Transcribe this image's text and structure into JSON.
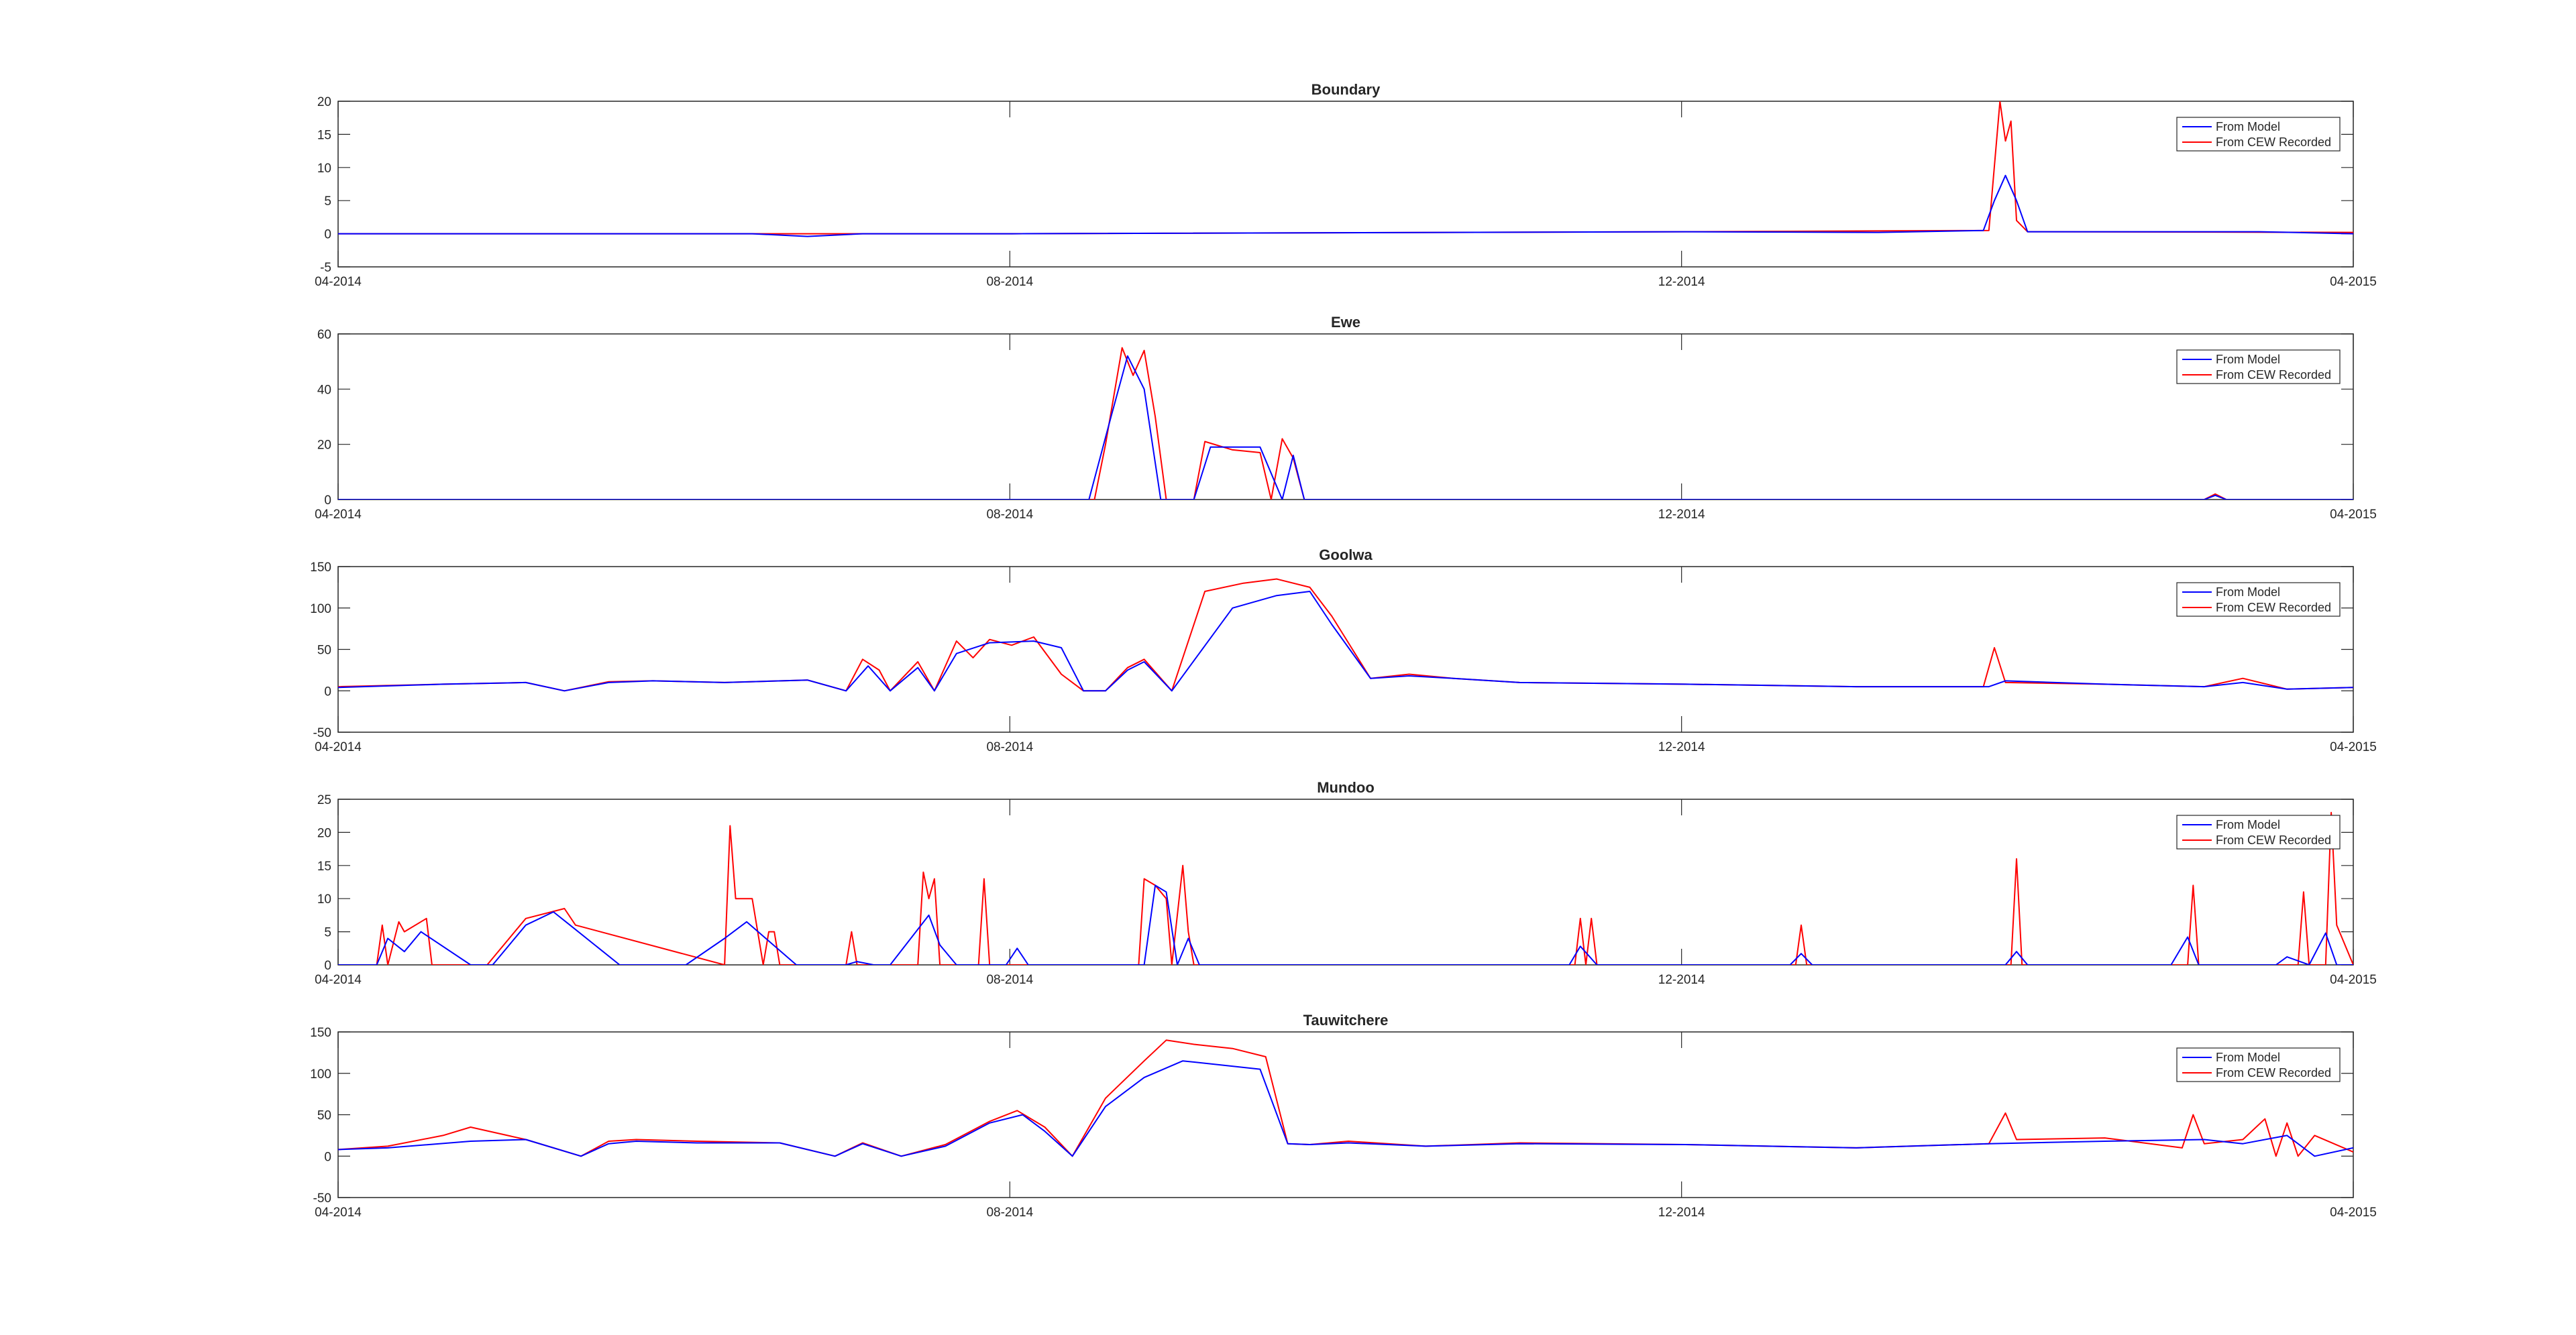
{
  "legend": {
    "model_label": "From Model",
    "recorded_label": "From CEW Recorded"
  },
  "colors": {
    "model": "#0000ff",
    "recorded": "#ff0000",
    "axis": "#262626",
    "grid": "#262626"
  },
  "chart_data": [
    {
      "type": "line",
      "title": "Boundary",
      "xlabel": "",
      "ylabel": "",
      "x_ticks": [
        "04-2014",
        "08-2014",
        "12-2014",
        "04-2015"
      ],
      "x_range": [
        "2014-04-01",
        "2015-04-01"
      ],
      "ylim": [
        -5,
        20
      ],
      "y_ticks": [
        -5,
        0,
        5,
        10,
        15,
        20
      ],
      "legend_position": "top-right",
      "series": [
        {
          "name": "From Model",
          "x": [
            "2014-04-01",
            "2014-06-15",
            "2014-06-25",
            "2014-07-05",
            "2014-08-01",
            "2014-12-01",
            "2015-01-05",
            "2015-01-24",
            "2015-01-26",
            "2015-01-28",
            "2015-01-30",
            "2015-02-01",
            "2015-03-15",
            "2015-04-01"
          ],
          "values": [
            0,
            0,
            -0.4,
            0,
            0,
            0.3,
            0.2,
            0.5,
            5,
            8.8,
            5,
            0.3,
            0.3,
            0
          ]
        },
        {
          "name": "From CEW Recorded",
          "x": [
            "2014-04-01",
            "2014-08-01",
            "2014-12-01",
            "2015-01-25",
            "2015-01-27",
            "2015-01-28",
            "2015-01-29",
            "2015-01-30",
            "2015-02-01",
            "2015-04-01"
          ],
          "values": [
            0,
            0,
            0.3,
            0.5,
            20,
            14,
            17,
            2,
            0.3,
            0.2
          ]
        }
      ]
    },
    {
      "type": "line",
      "title": "Ewe",
      "xlabel": "",
      "ylabel": "",
      "x_ticks": [
        "04-2014",
        "08-2014",
        "12-2014",
        "04-2015"
      ],
      "x_range": [
        "2014-04-01",
        "2015-04-01"
      ],
      "ylim": [
        0,
        60
      ],
      "y_ticks": [
        0,
        20,
        40,
        60
      ],
      "legend_position": "top-right",
      "series": [
        {
          "name": "From Model",
          "x": [
            "2014-04-01",
            "2014-08-15",
            "2014-08-19",
            "2014-08-22",
            "2014-08-25",
            "2014-08-28",
            "2014-09-03",
            "2014-09-06",
            "2014-09-15",
            "2014-09-19",
            "2014-09-21",
            "2014-09-23",
            "2015-03-05",
            "2015-03-07",
            "2015-03-09",
            "2015-04-01"
          ],
          "values": [
            0,
            0,
            30,
            52,
            40,
            0,
            0,
            19,
            19,
            0,
            16,
            0,
            0,
            1.5,
            0,
            0
          ]
        },
        {
          "name": "From CEW Recorded",
          "x": [
            "2014-04-01",
            "2014-08-16",
            "2014-08-18",
            "2014-08-21",
            "2014-08-23",
            "2014-08-25",
            "2014-08-27",
            "2014-08-29",
            "2014-09-03",
            "2014-09-05",
            "2014-09-10",
            "2014-09-15",
            "2014-09-17",
            "2014-09-19",
            "2014-09-21",
            "2014-09-23",
            "2015-03-05",
            "2015-03-07",
            "2015-03-09",
            "2015-04-01"
          ],
          "values": [
            0,
            0,
            20,
            55,
            45,
            54,
            30,
            0,
            0,
            21,
            18,
            17,
            0,
            22,
            15,
            0,
            0,
            2,
            0,
            0
          ]
        }
      ]
    },
    {
      "type": "line",
      "title": "Goolwa",
      "xlabel": "",
      "ylabel": "",
      "x_ticks": [
        "04-2014",
        "08-2014",
        "12-2014",
        "04-2015"
      ],
      "x_range": [
        "2014-04-01",
        "2015-04-01"
      ],
      "ylim": [
        -50,
        150
      ],
      "y_ticks": [
        -50,
        0,
        50,
        100,
        150
      ],
      "legend_position": "top-right",
      "series": [
        {
          "name": "From Model",
          "x": [
            "2014-04-01",
            "2014-04-20",
            "2014-05-05",
            "2014-05-12",
            "2014-05-20",
            "2014-05-28",
            "2014-06-10",
            "2014-06-25",
            "2014-07-02",
            "2014-07-06",
            "2014-07-10",
            "2014-07-15",
            "2014-07-18",
            "2014-07-22",
            "2014-07-28",
            "2014-08-05",
            "2014-08-10",
            "2014-08-14",
            "2014-08-18",
            "2014-08-22",
            "2014-08-25",
            "2014-08-30",
            "2014-09-10",
            "2014-09-18",
            "2014-09-24",
            "2014-09-28",
            "2014-10-05",
            "2014-10-12",
            "2014-10-20",
            "2014-11-01",
            "2014-12-01",
            "2015-01-01",
            "2015-01-25",
            "2015-01-28",
            "2015-02-15",
            "2015-03-05",
            "2015-03-12",
            "2015-03-20",
            "2015-04-01"
          ],
          "values": [
            4,
            8,
            10,
            0,
            10,
            12,
            10,
            13,
            0,
            30,
            0,
            28,
            0,
            45,
            58,
            60,
            52,
            0,
            0,
            25,
            35,
            0,
            100,
            115,
            120,
            80,
            15,
            18,
            15,
            10,
            8,
            5,
            5,
            12,
            8,
            5,
            10,
            2,
            4
          ]
        },
        {
          "name": "From CEW Recorded",
          "x": [
            "2014-04-01",
            "2014-04-20",
            "2014-05-05",
            "2014-05-12",
            "2014-05-20",
            "2014-05-28",
            "2014-06-10",
            "2014-06-25",
            "2014-07-02",
            "2014-07-05",
            "2014-07-08",
            "2014-07-10",
            "2014-07-15",
            "2014-07-18",
            "2014-07-22",
            "2014-07-25",
            "2014-07-28",
            "2014-08-01",
            "2014-08-05",
            "2014-08-10",
            "2014-08-14",
            "2014-08-18",
            "2014-08-22",
            "2014-08-25",
            "2014-08-30",
            "2014-09-05",
            "2014-09-12",
            "2014-09-18",
            "2014-09-24",
            "2014-09-28",
            "2014-10-05",
            "2014-10-12",
            "2014-10-20",
            "2014-11-01",
            "2014-12-01",
            "2015-01-01",
            "2015-01-24",
            "2015-01-26",
            "2015-01-28",
            "2015-02-15",
            "2015-03-05",
            "2015-03-12",
            "2015-03-20",
            "2015-04-01"
          ],
          "values": [
            5,
            8,
            10,
            0,
            11,
            12,
            10,
            13,
            0,
            38,
            25,
            0,
            35,
            0,
            60,
            40,
            62,
            55,
            65,
            20,
            0,
            0,
            28,
            38,
            0,
            120,
            130,
            135,
            125,
            90,
            15,
            20,
            15,
            10,
            8,
            5,
            5,
            52,
            10,
            8,
            5,
            15,
            2,
            4
          ]
        }
      ]
    },
    {
      "type": "line",
      "title": "Mundoo",
      "xlabel": "",
      "ylabel": "",
      "x_ticks": [
        "04-2014",
        "08-2014",
        "12-2014",
        "04-2015"
      ],
      "x_range": [
        "2014-04-01",
        "2015-04-01"
      ],
      "ylim": [
        0,
        25
      ],
      "y_ticks": [
        0,
        5,
        10,
        15,
        20,
        25
      ],
      "legend_position": "top-right",
      "series": [
        {
          "name": "From Model",
          "x": [
            "2014-04-01",
            "2014-04-08",
            "2014-04-10",
            "2014-04-13",
            "2014-04-16",
            "2014-04-25",
            "2014-04-29",
            "2014-05-05",
            "2014-05-10",
            "2014-05-13",
            "2014-05-22",
            "2014-06-03",
            "2014-06-10",
            "2014-06-14",
            "2014-06-23",
            "2014-07-02",
            "2014-07-04",
            "2014-07-07",
            "2014-07-10",
            "2014-07-17",
            "2014-07-19",
            "2014-07-22",
            "2014-07-31",
            "2014-08-02",
            "2014-08-04",
            "2014-08-25",
            "2014-08-27",
            "2014-08-29",
            "2014-08-31",
            "2014-09-02",
            "2014-09-04",
            "2014-11-10",
            "2014-11-12",
            "2014-11-15",
            "2014-12-20",
            "2014-12-22",
            "2014-12-24",
            "2015-01-28",
            "2015-01-30",
            "2015-02-01",
            "2015-02-27",
            "2015-03-02",
            "2015-03-04",
            "2015-03-18",
            "2015-03-20",
            "2015-03-24",
            "2015-03-27",
            "2015-03-29",
            "2015-04-01"
          ],
          "values": [
            0,
            0,
            4,
            2,
            5,
            0,
            0,
            6,
            8,
            6,
            0,
            0,
            4,
            6.5,
            0,
            0,
            0.5,
            0,
            0,
            7.5,
            3,
            0,
            0,
            2.5,
            0,
            0,
            12,
            11,
            0,
            4,
            0,
            0,
            2.8,
            0,
            0,
            1.7,
            0,
            0,
            2,
            0,
            0,
            4.2,
            0,
            0,
            1.2,
            0,
            4.8,
            0,
            0
          ]
        },
        {
          "name": "From CEW Recorded",
          "x": [
            "2014-04-01",
            "2014-04-08",
            "2014-04-09",
            "2014-04-10",
            "2014-04-12",
            "2014-04-13",
            "2014-04-17",
            "2014-04-18",
            "2014-04-25",
            "2014-04-28",
            "2014-05-05",
            "2014-05-12",
            "2014-05-14",
            "2014-06-10",
            "2014-06-11",
            "2014-06-12",
            "2014-06-15",
            "2014-06-17",
            "2014-06-18",
            "2014-06-19",
            "2014-06-20",
            "2014-07-02",
            "2014-07-03",
            "2014-07-04",
            "2014-07-15",
            "2014-07-16",
            "2014-07-17",
            "2014-07-18",
            "2014-07-19",
            "2014-07-22",
            "2014-07-26",
            "2014-07-27",
            "2014-07-28",
            "2014-08-24",
            "2014-08-25",
            "2014-08-27",
            "2014-08-29",
            "2014-08-30",
            "2014-09-01",
            "2014-09-02",
            "2014-09-03",
            "2014-11-11",
            "2014-11-12",
            "2014-11-13",
            "2014-11-14",
            "2014-11-15",
            "2014-12-21",
            "2014-12-22",
            "2014-12-23",
            "2015-01-29",
            "2015-01-30",
            "2015-01-31",
            "2015-03-02",
            "2015-03-03",
            "2015-03-04",
            "2015-03-22",
            "2015-03-23",
            "2015-03-24",
            "2015-03-27",
            "2015-03-28",
            "2015-03-29",
            "2015-04-01"
          ],
          "values": [
            0,
            0,
            6,
            0,
            6.5,
            5,
            7,
            0,
            0,
            0,
            7,
            8.5,
            6,
            0,
            21,
            10,
            10,
            0,
            5,
            5,
            0,
            0,
            5,
            0,
            0,
            14,
            10,
            13,
            0,
            0,
            0,
            13,
            0,
            0,
            13,
            12,
            10,
            0,
            15,
            5,
            0,
            0,
            7,
            0,
            7,
            0,
            0,
            6,
            0,
            0,
            16,
            0,
            0,
            12,
            0,
            0,
            11,
            0,
            0,
            23,
            6,
            0
          ]
        }
      ]
    },
    {
      "type": "line",
      "title": "Tauwitchere",
      "xlabel": "",
      "ylabel": "",
      "x_ticks": [
        "04-2014",
        "08-2014",
        "12-2014",
        "04-2015"
      ],
      "x_range": [
        "2014-04-01",
        "2015-04-01"
      ],
      "ylim": [
        -50,
        150
      ],
      "y_ticks": [
        -50,
        0,
        50,
        100,
        150
      ],
      "legend_position": "top-right",
      "series": [
        {
          "name": "From Model",
          "x": [
            "2014-04-01",
            "2014-04-10",
            "2014-04-25",
            "2014-05-05",
            "2014-05-15",
            "2014-05-20",
            "2014-05-25",
            "2014-06-05",
            "2014-06-20",
            "2014-06-30",
            "2014-07-05",
            "2014-07-12",
            "2014-07-20",
            "2014-07-28",
            "2014-08-03",
            "2014-08-07",
            "2014-08-12",
            "2014-08-18",
            "2014-08-25",
            "2014-09-01",
            "2014-09-08",
            "2014-09-15",
            "2014-09-20",
            "2014-09-24",
            "2014-10-01",
            "2014-10-15",
            "2014-11-01",
            "2014-12-01",
            "2015-01-01",
            "2015-01-25",
            "2015-02-15",
            "2015-03-05",
            "2015-03-12",
            "2015-03-20",
            "2015-03-25",
            "2015-04-01"
          ],
          "values": [
            8,
            10,
            18,
            20,
            0,
            15,
            18,
            16,
            16,
            0,
            15,
            0,
            12,
            40,
            50,
            30,
            0,
            60,
            95,
            115,
            110,
            105,
            15,
            14,
            16,
            12,
            15,
            14,
            10,
            15,
            18,
            20,
            15,
            25,
            0,
            10
          ]
        },
        {
          "name": "From CEW Recorded",
          "x": [
            "2014-04-01",
            "2014-04-10",
            "2014-04-20",
            "2014-04-25",
            "2014-05-05",
            "2014-05-15",
            "2014-05-20",
            "2014-05-25",
            "2014-06-05",
            "2014-06-20",
            "2014-06-30",
            "2014-07-05",
            "2014-07-12",
            "2014-07-20",
            "2014-07-28",
            "2014-08-02",
            "2014-08-07",
            "2014-08-12",
            "2014-08-18",
            "2014-08-25",
            "2014-08-29",
            "2014-09-03",
            "2014-09-10",
            "2014-09-16",
            "2014-09-20",
            "2014-09-24",
            "2014-10-01",
            "2014-10-15",
            "2014-11-01",
            "2014-12-01",
            "2015-01-01",
            "2015-01-25",
            "2015-01-28",
            "2015-01-30",
            "2015-02-15",
            "2015-03-01",
            "2015-03-03",
            "2015-03-05",
            "2015-03-12",
            "2015-03-16",
            "2015-03-18",
            "2015-03-20",
            "2015-03-22",
            "2015-03-25",
            "2015-04-01"
          ],
          "values": [
            8,
            12,
            25,
            35,
            20,
            0,
            18,
            20,
            18,
            16,
            0,
            16,
            0,
            14,
            42,
            55,
            35,
            0,
            70,
            115,
            140,
            135,
            130,
            120,
            15,
            14,
            18,
            12,
            16,
            14,
            10,
            15,
            52,
            20,
            22,
            10,
            50,
            15,
            20,
            45,
            0,
            40,
            0,
            25,
            5
          ]
        }
      ]
    }
  ]
}
